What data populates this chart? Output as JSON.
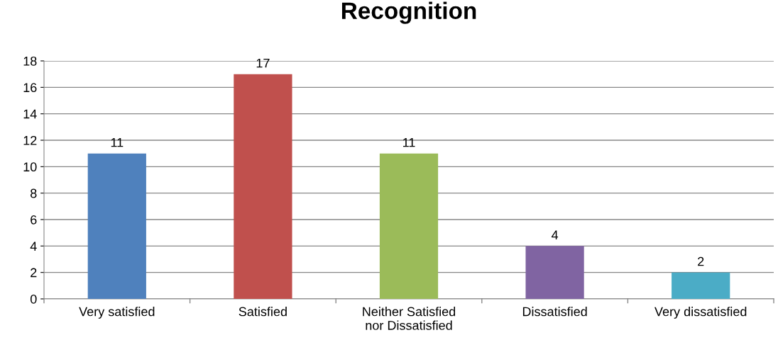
{
  "chart_data": {
    "type": "bar",
    "title": "Recognition",
    "categories": [
      "Very satisfied",
      "Satisfied",
      "Neither Satisfied\nnor Dissatisfied",
      "Dissatisfied",
      "Very dissatisfied"
    ],
    "values": [
      11,
      17,
      11,
      4,
      2
    ],
    "colors": [
      "#4f81bd",
      "#c0504d",
      "#9bbb59",
      "#8064a2",
      "#4bacc6"
    ],
    "ylim": [
      0,
      18
    ],
    "yticks": [
      0,
      2,
      4,
      6,
      8,
      10,
      12,
      14,
      16,
      18
    ],
    "grid": "y",
    "data_labels": true
  }
}
